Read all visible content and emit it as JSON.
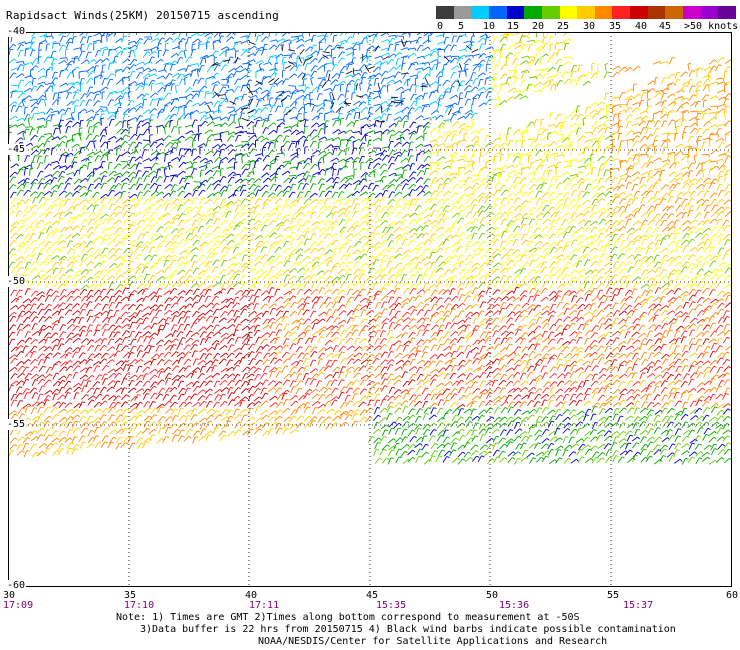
{
  "title": "Rapidsact Winds(25KM) 20150715 ascending",
  "legend": {
    "colors": [
      "#3c3c3c",
      "#9a9a9a",
      "#00ccff",
      "#0066ff",
      "#0000cc",
      "#00aa00",
      "#66cc00",
      "#ffff00",
      "#ffcc00",
      "#ff8800",
      "#ff2222",
      "#cc0000",
      "#aa3300",
      "#cc6600",
      "#cc00cc",
      "#9900cc",
      "#660099"
    ],
    "labels": [
      "0",
      "5",
      "10",
      "15",
      "20",
      "25",
      "30",
      "35",
      "40",
      "45",
      ">50 knots"
    ]
  },
  "axes": {
    "lat_labels": [
      "-40",
      "-45",
      "-50",
      "-55",
      "-60"
    ],
    "lon_labels": [
      "30",
      "35",
      "40",
      "45",
      "50",
      "55",
      "60"
    ],
    "time_labels": [
      "17:09",
      "17:10",
      "17:11",
      "15:35",
      "15:36",
      "15:37"
    ]
  },
  "notes": [
    "Note: 1) Times are GMT 2)Times along bottom correspond to measurement at -50S",
    "3)Data buffer is 22 hrs from 20150715 4) Black wind barbs indicate possible contamination",
    "NOAA/NESDIS/Center for Satellite Applications and Research"
  ]
}
